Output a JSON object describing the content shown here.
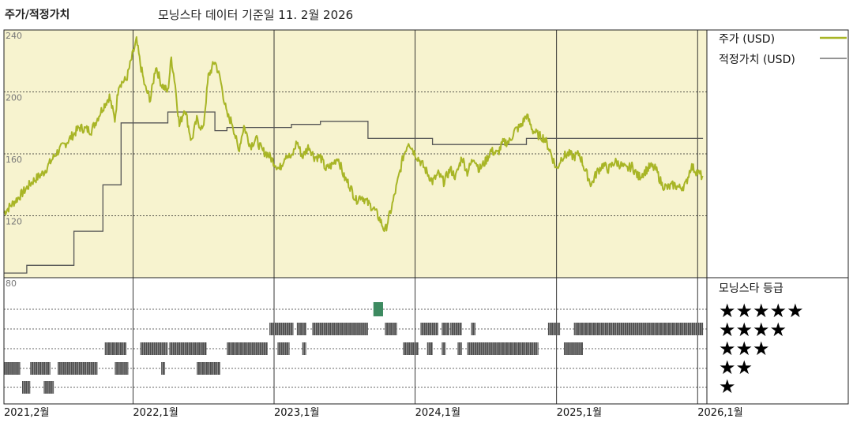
{
  "header": {
    "chart_label": "주가/적정가치",
    "subtitle": "모닝스타 데이터 기준일 11. 2월 2026"
  },
  "legend": {
    "price": "주가 (USD)",
    "fair_value": "적정가치 (USD)",
    "rating_title": "모닝스타 등급"
  },
  "colors": {
    "price_line": "#a8b526",
    "fair_value_line": "#555555",
    "upper_bg": "#f7f3cf",
    "rating_bar": "#4d4d4d",
    "rating_highlight": "#3d8a60"
  },
  "chart_data": {
    "type": "line",
    "x_labels": [
      "2021,2월",
      "2022,1월",
      "2023,1월",
      "2024,1월",
      "2025,1월",
      "2026,1월"
    ],
    "ylim": [
      80,
      240
    ],
    "y_ticks": [
      80,
      120,
      160,
      200,
      240
    ],
    "grid": true,
    "legend_position": "right",
    "price": [
      [
        "2021-02-01",
        122
      ],
      [
        "2021-03-15",
        133
      ],
      [
        "2021-04-15",
        142
      ],
      [
        "2021-05-15",
        148
      ],
      [
        "2021-06-15",
        160
      ],
      [
        "2021-07-15",
        168
      ],
      [
        "2021-08-15",
        177
      ],
      [
        "2021-09-15",
        175
      ],
      [
        "2021-10-15",
        190
      ],
      [
        "2021-11-01",
        197
      ],
      [
        "2021-11-15",
        182
      ],
      [
        "2021-11-25",
        205
      ],
      [
        "2021-12-15",
        208
      ],
      [
        "2022-01-01",
        225
      ],
      [
        "2022-01-10",
        233
      ],
      [
        "2022-01-20",
        218
      ],
      [
        "2022-02-01",
        203
      ],
      [
        "2022-02-15",
        195
      ],
      [
        "2022-03-01",
        217
      ],
      [
        "2022-03-15",
        205
      ],
      [
        "2022-04-01",
        200
      ],
      [
        "2022-04-10",
        222
      ],
      [
        "2022-04-20",
        205
      ],
      [
        "2022-05-01",
        178
      ],
      [
        "2022-05-15",
        190
      ],
      [
        "2022-06-01",
        168
      ],
      [
        "2022-06-15",
        182
      ],
      [
        "2022-07-01",
        175
      ],
      [
        "2022-07-15",
        210
      ],
      [
        "2022-08-01",
        220
      ],
      [
        "2022-08-15",
        208
      ],
      [
        "2022-09-01",
        185
      ],
      [
        "2022-09-15",
        180
      ],
      [
        "2022-10-01",
        162
      ],
      [
        "2022-10-15",
        178
      ],
      [
        "2022-11-01",
        165
      ],
      [
        "2022-11-15",
        170
      ],
      [
        "2022-12-01",
        162
      ],
      [
        "2022-12-15",
        160
      ],
      [
        "2023-01-15",
        150
      ],
      [
        "2023-02-01",
        160
      ],
      [
        "2023-02-15",
        157
      ],
      [
        "2023-03-01",
        168
      ],
      [
        "2023-03-15",
        158
      ],
      [
        "2023-04-01",
        165
      ],
      [
        "2023-04-15",
        158
      ],
      [
        "2023-05-01",
        158
      ],
      [
        "2023-05-15",
        150
      ],
      [
        "2023-06-01",
        153
      ],
      [
        "2023-06-15",
        158
      ],
      [
        "2023-07-01",
        145
      ],
      [
        "2023-07-15",
        140
      ],
      [
        "2023-08-01",
        130
      ],
      [
        "2023-08-15",
        133
      ],
      [
        "2023-09-01",
        128
      ],
      [
        "2023-09-15",
        125
      ],
      [
        "2023-10-01",
        118
      ],
      [
        "2023-10-15",
        110
      ],
      [
        "2023-11-01",
        125
      ],
      [
        "2023-11-15",
        140
      ],
      [
        "2023-12-01",
        158
      ],
      [
        "2023-12-15",
        168
      ],
      [
        "2024-01-01",
        160
      ],
      [
        "2024-01-15",
        155
      ],
      [
        "2024-02-01",
        148
      ],
      [
        "2024-02-15",
        142
      ],
      [
        "2024-03-01",
        147
      ],
      [
        "2024-03-15",
        142
      ],
      [
        "2024-04-01",
        150
      ],
      [
        "2024-04-15",
        145
      ],
      [
        "2024-05-01",
        158
      ],
      [
        "2024-05-15",
        148
      ],
      [
        "2024-06-01",
        158
      ],
      [
        "2024-06-15",
        150
      ],
      [
        "2024-07-01",
        155
      ],
      [
        "2024-07-15",
        162
      ],
      [
        "2024-08-01",
        160
      ],
      [
        "2024-08-15",
        167
      ],
      [
        "2024-09-01",
        168
      ],
      [
        "2024-09-15",
        175
      ],
      [
        "2024-10-01",
        178
      ],
      [
        "2024-10-15",
        185
      ],
      [
        "2024-11-01",
        175
      ],
      [
        "2024-11-15",
        172
      ],
      [
        "2024-12-01",
        170
      ],
      [
        "2024-12-15",
        162
      ],
      [
        "2025-01-01",
        150
      ],
      [
        "2025-01-15",
        158
      ],
      [
        "2025-02-01",
        160
      ],
      [
        "2025-02-15",
        158
      ],
      [
        "2025-03-01",
        160
      ],
      [
        "2025-03-15",
        150
      ],
      [
        "2025-04-01",
        140
      ],
      [
        "2025-04-15",
        148
      ],
      [
        "2025-05-01",
        153
      ],
      [
        "2025-05-15",
        150
      ],
      [
        "2025-06-01",
        155
      ],
      [
        "2025-06-15",
        153
      ],
      [
        "2025-07-01",
        150
      ],
      [
        "2025-07-15",
        152
      ],
      [
        "2025-08-01",
        145
      ],
      [
        "2025-08-15",
        148
      ],
      [
        "2025-09-01",
        152
      ],
      [
        "2025-09-15",
        150
      ],
      [
        "2025-10-01",
        140
      ],
      [
        "2025-10-15",
        138
      ],
      [
        "2025-11-01",
        140
      ],
      [
        "2025-11-15",
        138
      ],
      [
        "2025-12-01",
        140
      ],
      [
        "2025-12-15",
        152
      ],
      [
        "2026-01-01",
        148
      ],
      [
        "2026-01-15",
        145
      ]
    ],
    "fair_value": [
      [
        "2021-02-01",
        83
      ],
      [
        "2021-04-01",
        83
      ],
      [
        "2021-04-01",
        88
      ],
      [
        "2021-08-01",
        88
      ],
      [
        "2021-08-01",
        110
      ],
      [
        "2021-10-15",
        110
      ],
      [
        "2021-10-15",
        140
      ],
      [
        "2021-12-01",
        140
      ],
      [
        "2021-12-01",
        180
      ],
      [
        "2022-04-01",
        180
      ],
      [
        "2022-04-01",
        187
      ],
      [
        "2022-08-01",
        187
      ],
      [
        "2022-08-01",
        175
      ],
      [
        "2022-09-01",
        175
      ],
      [
        "2022-09-01",
        177
      ],
      [
        "2023-02-15",
        177
      ],
      [
        "2023-02-15",
        179
      ],
      [
        "2023-05-01",
        179
      ],
      [
        "2023-05-01",
        181
      ],
      [
        "2023-09-01",
        181
      ],
      [
        "2023-09-01",
        170
      ],
      [
        "2024-02-15",
        170
      ],
      [
        "2024-02-15",
        166
      ],
      [
        "2024-10-15",
        166
      ],
      [
        "2024-10-15",
        170
      ],
      [
        "2026-01-15",
        170
      ]
    ],
    "rating_intervals": [
      {
        "stars": 1,
        "start": "2021-03-20",
        "end": "2021-04-10"
      },
      {
        "stars": 1,
        "start": "2021-05-15",
        "end": "2021-06-10"
      },
      {
        "stars": 2,
        "start": "2021-02-01",
        "end": "2021-03-15"
      },
      {
        "stars": 2,
        "start": "2021-04-10",
        "end": "2021-06-01"
      },
      {
        "stars": 2,
        "start": "2021-06-20",
        "end": "2021-10-01"
      },
      {
        "stars": 2,
        "start": "2021-11-15",
        "end": "2021-12-20"
      },
      {
        "stars": 2,
        "start": "2022-03-15",
        "end": "2022-03-25"
      },
      {
        "stars": 2,
        "start": "2022-06-15",
        "end": "2022-08-15"
      },
      {
        "stars": 3,
        "start": "2021-10-20",
        "end": "2021-12-15"
      },
      {
        "stars": 3,
        "start": "2022-01-20",
        "end": "2022-04-01"
      },
      {
        "stars": 3,
        "start": "2022-04-05",
        "end": "2022-07-10"
      },
      {
        "stars": 3,
        "start": "2022-09-01",
        "end": "2022-12-15"
      },
      {
        "stars": 3,
        "start": "2023-01-10",
        "end": "2023-02-10"
      },
      {
        "stars": 3,
        "start": "2023-03-15",
        "end": "2023-03-25"
      },
      {
        "stars": 3,
        "start": "2023-12-01",
        "end": "2024-01-10"
      },
      {
        "stars": 3,
        "start": "2024-02-01",
        "end": "2024-02-15"
      },
      {
        "stars": 3,
        "start": "2024-03-10",
        "end": "2024-03-20"
      },
      {
        "stars": 3,
        "start": "2024-04-20",
        "end": "2024-05-01"
      },
      {
        "stars": 3,
        "start": "2024-05-15",
        "end": "2024-11-15"
      },
      {
        "stars": 3,
        "start": "2025-01-20",
        "end": "2025-03-10"
      },
      {
        "stars": 4,
        "start": "2022-12-20",
        "end": "2023-02-20"
      },
      {
        "stars": 4,
        "start": "2023-03-01",
        "end": "2023-03-25"
      },
      {
        "stars": 4,
        "start": "2023-04-10",
        "end": "2023-09-01"
      },
      {
        "stars": 4,
        "start": "2023-10-15",
        "end": "2023-11-15"
      },
      {
        "stars": 4,
        "start": "2024-01-15",
        "end": "2024-03-01"
      },
      {
        "stars": 4,
        "start": "2024-03-10",
        "end": "2024-03-30"
      },
      {
        "stars": 4,
        "start": "2024-04-01",
        "end": "2024-05-01"
      },
      {
        "stars": 4,
        "start": "2024-05-25",
        "end": "2024-06-05"
      },
      {
        "stars": 4,
        "start": "2024-12-10",
        "end": "2025-01-10"
      },
      {
        "stars": 4,
        "start": "2025-02-15",
        "end": "2026-01-15"
      },
      {
        "stars": 5,
        "start": "2023-09-15",
        "end": "2023-10-10"
      }
    ]
  },
  "rating_stars": [
    "★★★★★",
    "★★★★",
    "★★★",
    "★★",
    "★"
  ]
}
